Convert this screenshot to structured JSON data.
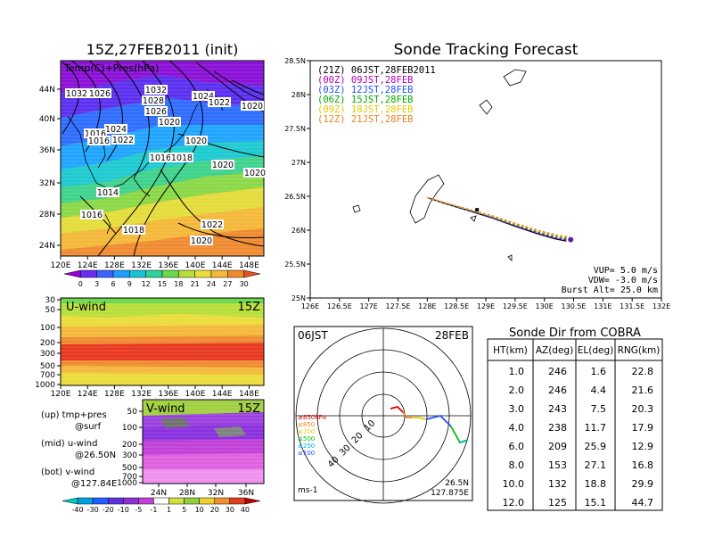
{
  "map_panel": {
    "title": "15Z,27FEB2011 (init)",
    "field_label": "Temp(C)+Pres(hPa)",
    "lat_ticks": [
      "44N",
      "40N",
      "36N",
      "32N",
      "28N",
      "24N"
    ],
    "lon_ticks": [
      "120E",
      "124E",
      "128E",
      "132E",
      "136E",
      "140E",
      "144E",
      "148E"
    ],
    "pressure_labels": [
      "1032",
      "1026",
      "1032",
      "1028",
      "1026",
      "1024",
      "1022",
      "1020",
      "1020",
      "1024",
      "1016",
      "1022",
      "1016",
      "1020",
      "1016",
      "1018",
      "1020",
      "1014",
      "1016",
      "1022",
      "1018",
      "1020",
      "1020"
    ],
    "colorbar_ticks": [
      "0",
      "3",
      "6",
      "9",
      "12",
      "15",
      "18",
      "21",
      "24",
      "27",
      "30"
    ],
    "colors": [
      "#9800d0",
      "#6a2df0",
      "#3b64ff",
      "#1f9cff",
      "#19c4d8",
      "#2ed29a",
      "#6ad84a",
      "#b8de3a",
      "#ecdc3a",
      "#f4b83a",
      "#f08a30",
      "#e85020"
    ]
  },
  "uwind_panel": {
    "title": "U-wind",
    "time": "15Z",
    "p_ticks": [
      "30",
      "50",
      "100",
      "200",
      "300",
      "500",
      "700",
      "1000"
    ],
    "lon_ticks": [
      "120E",
      "124E",
      "128E",
      "132E",
      "136E",
      "140E",
      "144E",
      "148E"
    ]
  },
  "vwind_panel": {
    "title": "V-wind",
    "time": "15Z",
    "p_ticks": [
      "50",
      "100",
      "200",
      "300",
      "500",
      "700",
      "1000"
    ],
    "lat_ticks": [
      "24N",
      "28N",
      "32N",
      "36N"
    ],
    "colorbar_ticks": [
      "-40",
      "-30",
      "-20",
      "-10",
      "-5",
      "-1",
      "1",
      "5",
      "10",
      "20",
      "30",
      "40"
    ]
  },
  "legend_notes": {
    "up1": "(up) tmp+pres",
    "up2": "@surf",
    "mid1": "(mid) u-wind",
    "mid2": "@26.50N",
    "bot1": "(bot) v-wind",
    "bot2": "@127.84E"
  },
  "tracking": {
    "title": "Sonde Tracking Forecast",
    "lat_ticks": [
      "28.5N",
      "28N",
      "27.5N",
      "27N",
      "26.5N",
      "26N",
      "25.5N",
      "25N"
    ],
    "lon_ticks": [
      "126E",
      "126.5E",
      "127E",
      "127.5E",
      "128E",
      "128.5E",
      "129E",
      "129.5E",
      "130E",
      "130.5E",
      "131E",
      "131.5E",
      "132E"
    ],
    "legend": [
      {
        "code": "(21Z)",
        "time": "06JST,28FEB2011",
        "color": "#000000"
      },
      {
        "code": "(00Z)",
        "time": "09JST,28FEB",
        "color": "#b000b0"
      },
      {
        "code": "(03Z)",
        "time": "12JST,28FEB",
        "color": "#2050ff"
      },
      {
        "code": "(06Z)",
        "time": "15JST,28FEB",
        "color": "#00b000"
      },
      {
        "code": "(09Z)",
        "time": "18JST,28FEB",
        "color": "#e8c800"
      },
      {
        "code": "(12Z)",
        "time": "21JST,28FEB",
        "color": "#f08020"
      }
    ],
    "params": {
      "vup": "VUP= 5.0 m/s",
      "vdw": "VDW= -3.0 m/s",
      "burst": "Burst Alt= 25.0 km"
    }
  },
  "polar": {
    "left_title": "06JST",
    "right_title": "28FEB",
    "ring_labels": [
      "10",
      "20",
      "30",
      "40"
    ],
    "unit": "ms-1",
    "loc1": "26.5N",
    "loc2": "127.875E",
    "levels": [
      {
        "label": "≥850hPa",
        "color": "#e00000"
      },
      {
        "label": "≤850",
        "color": "#f08020"
      },
      {
        "label": "≤700",
        "color": "#e8c800"
      },
      {
        "label": "≤500",
        "color": "#00c000"
      },
      {
        "label": "≤250",
        "color": "#00b0e0"
      },
      {
        "label": "≤100",
        "color": "#2050ff"
      }
    ]
  },
  "cobra_table": {
    "title": "Sonde Dir from COBRA",
    "headers": [
      "HT(km)",
      "AZ(deg)",
      "EL(deg)",
      "RNG(km)"
    ],
    "rows": [
      [
        "1.0",
        "246",
        "1.6",
        "22.8"
      ],
      [
        "2.0",
        "246",
        "4.4",
        "21.6"
      ],
      [
        "3.0",
        "243",
        "7.5",
        "20.3"
      ],
      [
        "4.0",
        "238",
        "11.7",
        "17.9"
      ],
      [
        "6.0",
        "209",
        "25.9",
        "12.9"
      ],
      [
        "8.0",
        "153",
        "27.1",
        "16.8"
      ],
      [
        "10.0",
        "132",
        "18.8",
        "29.9"
      ],
      [
        "12.0",
        "125",
        "15.1",
        "44.7"
      ]
    ]
  }
}
